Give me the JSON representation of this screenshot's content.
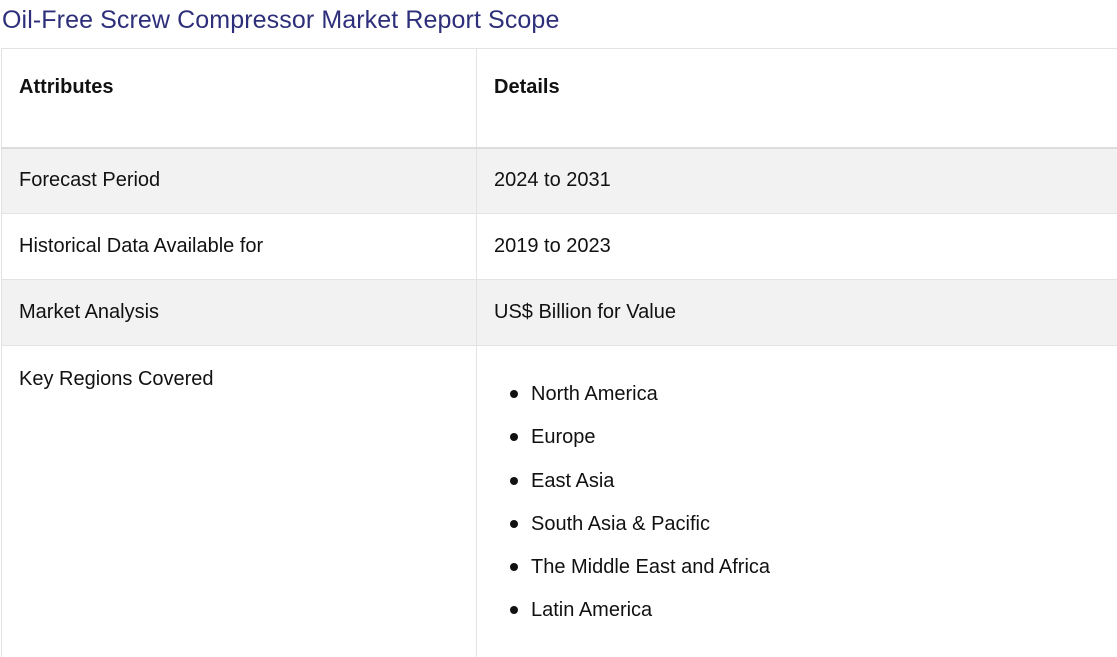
{
  "title": "Oil-Free Screw Compressor Market Report Scope",
  "table": {
    "headers": [
      "Attributes",
      "Details"
    ],
    "rows": [
      {
        "attribute": "Forecast Period",
        "detail": "2024 to 2031"
      },
      {
        "attribute": "Historical Data Available for",
        "detail": "2019 to 2023"
      },
      {
        "attribute": "Market Analysis",
        "detail": "US$ Billion for Value"
      }
    ],
    "regions": {
      "attribute": "Key Regions Covered",
      "items": [
        "North America",
        "Europe",
        "East Asia",
        "South Asia & Pacific",
        "The Middle East and Africa",
        "Latin America"
      ]
    }
  },
  "colors": {
    "title": "#2e2f7a",
    "shaded_row": "#f2f2f2",
    "border": "#e3e3e3"
  }
}
